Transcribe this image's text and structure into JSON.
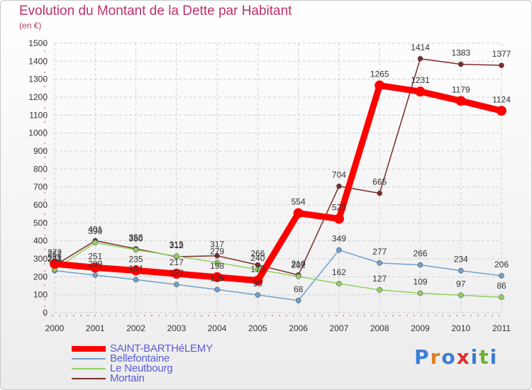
{
  "title": "Evolution du Montant de la Dette par Habitant",
  "subtitle": "(en €)",
  "brand": {
    "text": "Proxiti",
    "letter_colors": [
      "#3a7fd5",
      "#e08020",
      "#3a7fd5",
      "#e03030",
      "#3a7fd5",
      "#70b030",
      "#3a7fd5"
    ]
  },
  "chart_data": {
    "type": "line",
    "title": "Evolution du Montant de la Dette par Habitant",
    "ylabel": "(en €)",
    "xlabel": "",
    "x": [
      "2000",
      "2001",
      "2002",
      "2003",
      "2004",
      "2005",
      "2006",
      "2007",
      "2008",
      "2009",
      "2010",
      "2011"
    ],
    "ylim": [
      0,
      1500
    ],
    "yticks": [
      0,
      100,
      200,
      300,
      400,
      500,
      600,
      700,
      800,
      900,
      1000,
      1100,
      1200,
      1300,
      1400,
      1500
    ],
    "grid": true,
    "legend_position": "bottom-left",
    "series": [
      {
        "name": "SAINT-BARTHéLEMY",
        "color": "#ff0000",
        "values": [
          272,
          251,
          235,
          217,
          198,
          179,
          554,
          523,
          1265,
          1231,
          1179,
          1124
        ],
        "labels": [
          "272",
          "251",
          "235",
          "217",
          "198",
          "179",
          "554",
          "523",
          "1265",
          "1231",
          "1179",
          "1124"
        ]
      },
      {
        "name": "Bellefontaine",
        "color": "#6fa0cf",
        "values": [
          234,
          209,
          184,
          157,
          129,
          99,
          68,
          349,
          277,
          266,
          234,
          206
        ],
        "labels": [
          "234",
          "209",
          "184",
          "157",
          "129",
          "99",
          "68",
          "349",
          "277",
          "266",
          "234",
          "206"
        ]
      },
      {
        "name": "Le Neutbourg",
        "color": "#90d060",
        "values": [
          241,
          390,
          350,
          315,
          279,
          240,
          202,
          162,
          127,
          109,
          97,
          86
        ],
        "labels": [
          "241",
          "390",
          "350",
          "315",
          "279",
          "240",
          "202",
          "162",
          "127",
          "109",
          "97",
          "86"
        ]
      },
      {
        "name": "Mortain",
        "color": "#7b2a2a",
        "values": [
          262,
          401,
          356,
          312,
          317,
          266,
          210,
          704,
          665,
          1414,
          1383,
          1377
        ],
        "labels": [
          "262",
          "401",
          "356",
          "312",
          "317",
          "266",
          "210",
          "704",
          "665",
          "1414",
          "1383",
          "1377"
        ]
      }
    ]
  }
}
